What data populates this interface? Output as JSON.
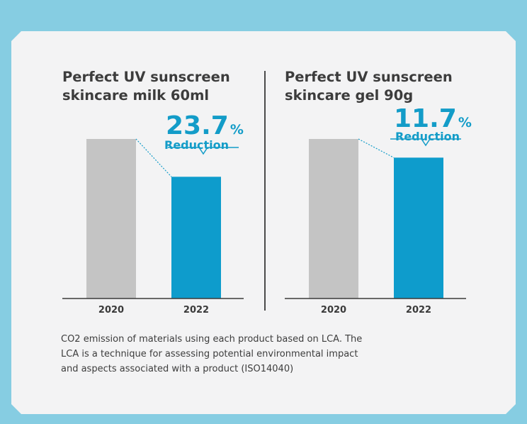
{
  "colors": {
    "background": "#86cde2",
    "card": "#f3f3f4",
    "bar_2020": "#c4c4c4",
    "bar_2022": "#0e9ccc",
    "accent_text": "#139cc8",
    "title_text": "#3c3c3c"
  },
  "chart_data": [
    {
      "type": "bar",
      "title_lines": [
        "Perfect UV sunscreen",
        "skincare milk 60ml"
      ],
      "categories": [
        "2020",
        "2022"
      ],
      "values": [
        100,
        76.3
      ],
      "ylim": [
        0,
        100
      ],
      "annotation": {
        "value": "23.7",
        "unit": "%",
        "label": "Reduction"
      }
    },
    {
      "type": "bar",
      "title_lines": [
        "Perfect UV sunscreen",
        "skincare gel 90g"
      ],
      "categories": [
        "2020",
        "2022"
      ],
      "values": [
        100,
        88.3
      ],
      "ylim": [
        0,
        100
      ],
      "annotation": {
        "value": "11.7",
        "unit": "%",
        "label": "Reduction"
      }
    }
  ],
  "caption_lines": [
    "CO2 emission of materials using each product based on LCA. The",
    "LCA is a technique for assessing potential environmental impact",
    "and aspects associated with a product (ISO14040)"
  ]
}
